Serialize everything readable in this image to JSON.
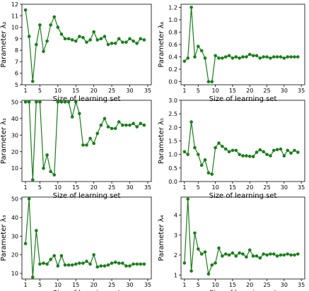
{
  "colors": {
    "series": "#1a7f1a",
    "axis": "#000000",
    "background": "#ffffff"
  },
  "chart_data": [
    {
      "type": "line",
      "id": "lambda2",
      "ylabel": "Parameter λ₂",
      "xlabel": "Size of learning set",
      "ylim": [
        5,
        12
      ],
      "yticks": [
        5,
        6,
        7,
        8,
        9,
        10,
        11,
        12
      ],
      "xlim": [
        0,
        36
      ],
      "xticks": [
        1,
        5,
        10,
        15,
        20,
        25,
        30,
        35
      ],
      "grid": false,
      "x": [
        1,
        2,
        3,
        4,
        5,
        6,
        7,
        8,
        9,
        10,
        11,
        12,
        13,
        14,
        15,
        16,
        17,
        18,
        19,
        20,
        21,
        22,
        23,
        24,
        25,
        26,
        27,
        28,
        29,
        30,
        31,
        32,
        33,
        34
      ],
      "y": [
        11.5,
        9.2,
        5.3,
        8.5,
        10.2,
        7.9,
        8.8,
        10.2,
        10.9,
        10.0,
        9.4,
        9.0,
        9.0,
        8.9,
        8.8,
        9.2,
        9.1,
        8.7,
        8.9,
        9.6,
        8.9,
        9.0,
        9.2,
        8.5,
        8.6,
        8.6,
        9.0,
        8.7,
        8.7,
        9.0,
        8.8,
        8.6,
        9.0,
        8.9
      ]
    },
    {
      "type": "line",
      "id": "lambda6",
      "ylabel": "Parameter λ₆",
      "xlabel": "Size of learning set",
      "ylim": [
        -0.05,
        1.25
      ],
      "yticks": [
        0.0,
        0.2,
        0.4,
        0.6,
        0.8,
        1.0,
        1.2
      ],
      "ytick_labels": [
        "0.0",
        "0.2",
        "0.4",
        "0.6",
        "0.8",
        "1.0",
        "1.2"
      ],
      "xlim": [
        0,
        36
      ],
      "xticks": [
        1,
        5,
        10,
        15,
        20,
        25,
        30,
        35
      ],
      "grid": false,
      "x": [
        1,
        2,
        3,
        4,
        5,
        6,
        7,
        8,
        9,
        10,
        11,
        12,
        13,
        14,
        15,
        16,
        17,
        18,
        19,
        20,
        21,
        22,
        23,
        24,
        25,
        26,
        27,
        28,
        29,
        30,
        31,
        32,
        33,
        34
      ],
      "y": [
        0.33,
        0.38,
        1.2,
        0.4,
        0.57,
        0.5,
        0.38,
        0.0,
        0.0,
        0.42,
        0.38,
        0.38,
        0.4,
        0.42,
        0.38,
        0.4,
        0.38,
        0.4,
        0.4,
        0.44,
        0.42,
        0.42,
        0.38,
        0.4,
        0.4,
        0.38,
        0.4,
        0.4,
        0.4,
        0.38,
        0.4,
        0.4,
        0.4,
        0.4
      ]
    },
    {
      "type": "line",
      "id": "lambda1",
      "ylabel": "Parameter λ₁",
      "xlabel": "Size of learning set",
      "ylim": [
        2,
        51
      ],
      "yticks": [
        10,
        20,
        30,
        40,
        50
      ],
      "xlim": [
        0,
        36
      ],
      "xticks": [
        1,
        5,
        10,
        15,
        20,
        25,
        30,
        35
      ],
      "grid": false,
      "x": [
        1,
        2,
        3,
        4,
        5,
        6,
        7,
        8,
        9,
        10,
        11,
        12,
        13,
        14,
        15,
        16,
        17,
        18,
        19,
        20,
        21,
        22,
        23,
        24,
        25,
        26,
        27,
        28,
        29,
        30,
        31,
        32,
        33,
        34
      ],
      "y": [
        50,
        50,
        3,
        50,
        50,
        10,
        18,
        8,
        6,
        50,
        50,
        50,
        50,
        41,
        50,
        43,
        24,
        24,
        28,
        25,
        31,
        36,
        40,
        35,
        34,
        34,
        38,
        36,
        36,
        36,
        37,
        35,
        37,
        36
      ]
    },
    {
      "type": "line",
      "id": "lambda5",
      "ylabel": "Parameter λ₅",
      "xlabel": "Size of learning set",
      "ylim": [
        0,
        3
      ],
      "yticks": [
        0.0,
        0.5,
        1.0,
        1.5,
        2.0,
        2.5,
        3.0
      ],
      "ytick_labels": [
        "0.0",
        "0.5",
        "1.0",
        "1.5",
        "2.0",
        "2.5",
        "3.0"
      ],
      "xlim": [
        0,
        36
      ],
      "xticks": [
        1,
        5,
        10,
        15,
        20,
        25,
        30,
        35
      ],
      "grid": false,
      "x": [
        1,
        2,
        3,
        4,
        5,
        6,
        7,
        8,
        9,
        10,
        11,
        12,
        13,
        14,
        15,
        16,
        17,
        18,
        19,
        20,
        21,
        22,
        23,
        24,
        25,
        26,
        27,
        28,
        29,
        30,
        31,
        32,
        33,
        34
      ],
      "y": [
        1.1,
        1.0,
        2.2,
        1.25,
        1.0,
        0.6,
        0.8,
        0.32,
        0.27,
        1.25,
        1.42,
        1.3,
        1.2,
        1.1,
        1.15,
        1.15,
        1.0,
        0.95,
        0.95,
        0.93,
        0.92,
        1.08,
        1.17,
        1.1,
        1.0,
        0.95,
        1.15,
        1.18,
        1.2,
        0.95,
        1.15,
        1.05,
        1.15,
        1.08
      ]
    },
    {
      "type": "line",
      "id": "lambda3",
      "ylabel": "Parameter λ₃",
      "xlabel": "Size of learning set",
      "ylim": [
        7,
        51
      ],
      "yticks": [
        10,
        20,
        30,
        40,
        50
      ],
      "xlim": [
        0,
        36
      ],
      "xticks": [
        1,
        5,
        10,
        15,
        20,
        25,
        30,
        35
      ],
      "grid": false,
      "x": [
        1,
        2,
        3,
        4,
        5,
        6,
        7,
        8,
        9,
        10,
        11,
        12,
        13,
        14,
        15,
        16,
        17,
        18,
        19,
        20,
        21,
        22,
        23,
        24,
        25,
        26,
        27,
        28,
        29,
        30,
        31,
        32,
        33,
        34
      ],
      "y": [
        26,
        50,
        8,
        33,
        15,
        15.5,
        15,
        17.5,
        19.5,
        14,
        19.5,
        14.5,
        14.5,
        14.5,
        15,
        15.5,
        15.5,
        16.5,
        15,
        20,
        13.5,
        14,
        14,
        14.5,
        15.5,
        16,
        15.5,
        15.5,
        14,
        14,
        15,
        15,
        15,
        15
      ]
    },
    {
      "type": "line",
      "id": "lambda4",
      "ylabel": "Parameter λ₄",
      "xlabel": "Size of learning set",
      "ylim": [
        0.8,
        4.9
      ],
      "yticks": [
        1,
        2,
        3,
        4
      ],
      "xlim": [
        0,
        36
      ],
      "xticks": [
        1,
        5,
        10,
        15,
        20,
        25,
        30,
        35
      ],
      "grid": false,
      "x": [
        1,
        2,
        3,
        4,
        5,
        6,
        7,
        8,
        9,
        10,
        11,
        12,
        13,
        14,
        15,
        16,
        17,
        18,
        19,
        20,
        21,
        22,
        23,
        24,
        25,
        26,
        27,
        28,
        29,
        30,
        31,
        32,
        33,
        34
      ],
      "y": [
        1.6,
        4.8,
        1.2,
        3.1,
        2.3,
        2.05,
        2.15,
        1.05,
        1.5,
        1.6,
        2.35,
        1.95,
        2.05,
        2.0,
        2.1,
        1.95,
        2.1,
        2.05,
        1.9,
        2.25,
        1.95,
        1.95,
        1.85,
        2.05,
        2.0,
        2.05,
        2.05,
        1.95,
        2.0,
        2.0,
        2.05,
        2.0,
        2.0,
        2.05
      ]
    }
  ]
}
